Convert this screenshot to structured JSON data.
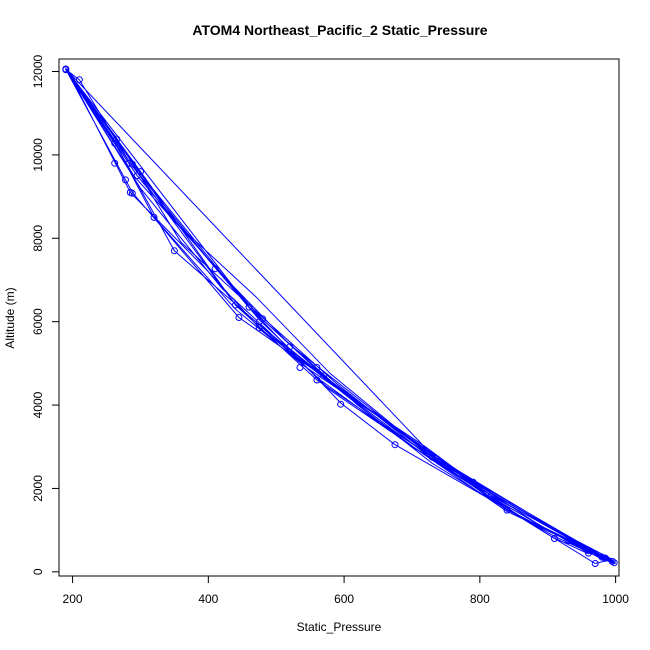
{
  "chart_data": {
    "type": "line",
    "title": "ATOM4 Northeast_Pacific_2 Static_Pressure",
    "xlabel": "Static_Pressure",
    "ylabel": "Altitude (m)",
    "xlim": [
      180,
      1005
    ],
    "ylim": [
      -100,
      12300
    ],
    "xticks": [
      200,
      400,
      600,
      800,
      1000
    ],
    "yticks": [
      0,
      2000,
      4000,
      6000,
      8000,
      10000,
      12000
    ],
    "grid": false,
    "legend": "none",
    "color": "#0000ff",
    "points": [
      [
        190,
        12060
      ],
      [
        300,
        9600
      ],
      [
        440,
        6400
      ],
      [
        560,
        4800
      ],
      [
        735,
        2750
      ],
      [
        980,
        350
      ],
      [
        1000,
        200
      ],
      [
        995,
        220
      ],
      [
        810,
        1900
      ],
      [
        730,
        2700
      ],
      [
        590,
        4500
      ],
      [
        480,
        6100
      ],
      [
        360,
        7900
      ],
      [
        265,
        10400
      ],
      [
        190,
        12050
      ],
      [
        210,
        11800
      ],
      [
        285,
        9800
      ],
      [
        410,
        7300
      ],
      [
        520,
        5450
      ],
      [
        660,
        3650
      ],
      [
        840,
        1500
      ],
      [
        960,
        500
      ],
      [
        998,
        250
      ],
      [
        990,
        260
      ],
      [
        790,
        2150
      ],
      [
        700,
        3000
      ],
      [
        565,
        4600
      ],
      [
        470,
        6000
      ],
      [
        350,
        7700
      ],
      [
        262,
        10300
      ],
      [
        192,
        12070
      ],
      [
        190,
        12040
      ],
      [
        278,
        9800
      ],
      [
        320,
        8500
      ],
      [
        440,
        6300
      ],
      [
        540,
        4950
      ],
      [
        680,
        3400
      ],
      [
        820,
        1850
      ],
      [
        985,
        330
      ],
      [
        997,
        200
      ],
      [
        910,
        850
      ],
      [
        675,
        3050
      ],
      [
        595,
        4050
      ],
      [
        460,
        6350
      ],
      [
        415,
        7250
      ],
      [
        300,
        9550
      ],
      [
        190,
        12050
      ],
      [
        190,
        12060
      ],
      [
        460,
        6350
      ],
      [
        520,
        5450
      ],
      [
        570,
        4700
      ],
      [
        740,
        2650
      ],
      [
        995,
        250
      ],
      [
        980,
        300
      ],
      [
        930,
        750
      ],
      [
        840,
        1450
      ],
      [
        710,
        2900
      ],
      [
        620,
        4000
      ],
      [
        480,
        6050
      ],
      [
        290,
        9500
      ],
      [
        265,
        10200
      ],
      [
        190,
        12040
      ],
      [
        190,
        12050
      ],
      [
        295,
        9500
      ],
      [
        475,
        6050
      ],
      [
        520,
        5350
      ],
      [
        600,
        4300
      ],
      [
        720,
        3000
      ],
      [
        860,
        1300
      ],
      [
        990,
        280
      ],
      [
        970,
        200
      ],
      [
        860,
        1300
      ],
      [
        730,
        2600
      ],
      [
        555,
        4850
      ],
      [
        445,
        6100
      ],
      [
        288,
        9100
      ],
      [
        190,
        12050
      ],
      [
        192,
        12060
      ],
      [
        285,
        9100
      ],
      [
        400,
        7200
      ],
      [
        475,
        5850
      ],
      [
        555,
        4850
      ],
      [
        680,
        3300
      ],
      [
        830,
        1700
      ],
      [
        995,
        300
      ],
      [
        960,
        450
      ],
      [
        800,
        1950
      ],
      [
        720,
        2800
      ],
      [
        580,
        4350
      ],
      [
        480,
        5900
      ],
      [
        420,
        6800
      ],
      [
        300,
        9200
      ],
      [
        190,
        12050
      ],
      [
        190,
        12060
      ],
      [
        730,
        2800
      ],
      [
        890,
        1100
      ],
      [
        998,
        230
      ],
      [
        995,
        280
      ],
      [
        840,
        1480
      ],
      [
        730,
        2750
      ],
      [
        560,
        4600
      ],
      [
        440,
        6400
      ],
      [
        285,
        9800
      ],
      [
        190,
        12060
      ],
      [
        190,
        12050
      ],
      [
        265,
        10380
      ],
      [
        350,
        8400
      ],
      [
        470,
        6600
      ],
      [
        580,
        4750
      ],
      [
        745,
        2550
      ],
      [
        905,
        850
      ],
      [
        960,
        430
      ]
    ],
    "markers": [
      [
        190,
        12060
      ],
      [
        190,
        12040
      ],
      [
        210,
        11800
      ],
      [
        265,
        10380
      ],
      [
        262,
        10280
      ],
      [
        283,
        9800
      ],
      [
        288,
        9780
      ],
      [
        300,
        9600
      ],
      [
        295,
        9500
      ],
      [
        262,
        9800
      ],
      [
        278,
        9400
      ],
      [
        285,
        9100
      ],
      [
        288,
        9080
      ],
      [
        320,
        8500
      ],
      [
        350,
        7700
      ],
      [
        410,
        7270
      ],
      [
        440,
        6400
      ],
      [
        460,
        6350
      ],
      [
        480,
        6070
      ],
      [
        475,
        6000
      ],
      [
        445,
        6100
      ],
      [
        475,
        5850
      ],
      [
        520,
        5400
      ],
      [
        560,
        4900
      ],
      [
        535,
        4900
      ],
      [
        570,
        4700
      ],
      [
        560,
        4600
      ],
      [
        595,
        4020
      ],
      [
        675,
        3050
      ],
      [
        730,
        2750
      ],
      [
        740,
        2650
      ],
      [
        790,
        2150
      ],
      [
        810,
        1900
      ],
      [
        840,
        1480
      ],
      [
        910,
        800
      ],
      [
        930,
        750
      ],
      [
        960,
        450
      ],
      [
        970,
        200
      ],
      [
        980,
        350
      ],
      [
        985,
        330
      ],
      [
        995,
        250
      ],
      [
        998,
        220
      ]
    ]
  }
}
